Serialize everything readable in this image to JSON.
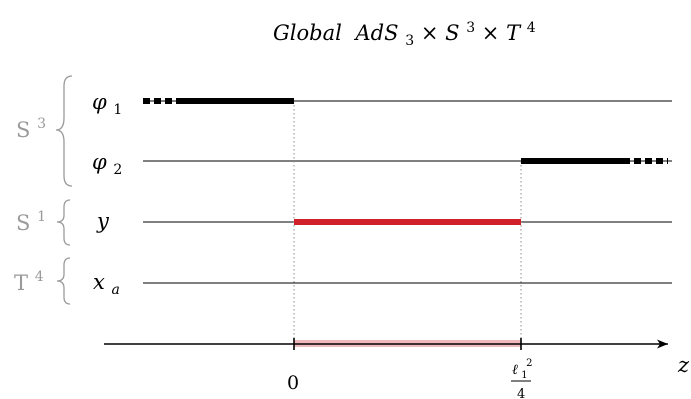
{
  "title": {
    "prefix": "Global",
    "ads": "AdS",
    "ads_sub": "3",
    "times1": "×",
    "s": "S",
    "s_sup": "3",
    "times2": "×",
    "t": "T",
    "t_sup": "4"
  },
  "groups": [
    {
      "base": "S",
      "sup": "3"
    },
    {
      "base": "S",
      "sup": "1"
    },
    {
      "base": "T",
      "sup": "4"
    }
  ],
  "rows": [
    {
      "base": "φ",
      "sub": "1"
    },
    {
      "base": "φ",
      "sub": "2"
    },
    {
      "base": "y",
      "sub": ""
    },
    {
      "base": "x",
      "sub": "a"
    }
  ],
  "axis": {
    "label": "z",
    "tick0": "0",
    "tick1_num": "ℓ",
    "tick1_num_sub": "1",
    "tick1_num_sup": "2",
    "tick1_den": "4"
  },
  "colors": {
    "line": "#000000",
    "segment": "#000000",
    "highlight": "#d0202a",
    "highlight_soft": "#e8a0a6",
    "guide": "#8c8c8c",
    "group_label": "#9a9a9a"
  }
}
